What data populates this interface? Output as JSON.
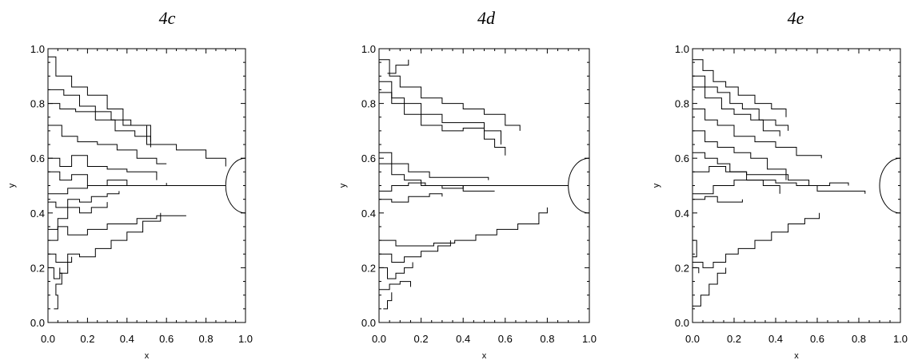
{
  "chart_data": [
    {
      "type": "line",
      "title": "4c",
      "xlabel": "x",
      "ylabel": "y",
      "xlim": [
        0,
        1
      ],
      "ylim": [
        0,
        1
      ],
      "xticks": [
        "0.0",
        "0.2",
        "0.4",
        "0.6",
        "0.8",
        "1.0"
      ],
      "yticks": [
        "0.0",
        "0.2",
        "0.4",
        "0.6",
        "0.8",
        "1.0"
      ],
      "grid": false,
      "target_semicircle": {
        "center": [
          1.0,
          0.5
        ],
        "radius": 0.1
      },
      "series": [
        {
          "x": [
            0.0,
            0.04,
            0.12,
            0.2,
            0.3,
            0.38,
            0.5,
            0.65,
            0.8,
            0.9
          ],
          "y": [
            0.97,
            0.9,
            0.86,
            0.83,
            0.78,
            0.72,
            0.65,
            0.63,
            0.6,
            0.57
          ]
        },
        {
          "x": [
            0.0,
            0.08,
            0.16,
            0.24,
            0.32,
            0.42,
            0.52
          ],
          "y": [
            0.85,
            0.83,
            0.79,
            0.77,
            0.74,
            0.72,
            0.66
          ]
        },
        {
          "x": [
            0.0,
            0.06,
            0.14,
            0.24,
            0.34,
            0.44,
            0.52
          ],
          "y": [
            0.8,
            0.78,
            0.77,
            0.74,
            0.7,
            0.68,
            0.64
          ]
        },
        {
          "x": [
            0.0,
            0.07,
            0.15,
            0.25,
            0.35,
            0.45,
            0.55,
            0.6
          ],
          "y": [
            0.72,
            0.68,
            0.66,
            0.65,
            0.63,
            0.6,
            0.58,
            0.58
          ]
        },
        {
          "x": [
            0.0,
            0.06,
            0.12,
            0.2,
            0.3,
            0.4,
            0.55
          ],
          "y": [
            0.6,
            0.57,
            0.61,
            0.57,
            0.56,
            0.55,
            0.52
          ]
        },
        {
          "x": [
            0.0,
            0.06,
            0.12,
            0.2,
            0.3,
            0.4,
            0.6
          ],
          "y": [
            0.55,
            0.52,
            0.54,
            0.5,
            0.52,
            0.5,
            0.51
          ]
        },
        {
          "x": [
            0.0,
            0.1,
            0.2,
            0.3,
            0.45,
            0.6,
            0.75,
            0.9
          ],
          "y": [
            0.47,
            0.49,
            0.5,
            0.5,
            0.5,
            0.5,
            0.5,
            0.5
          ]
        },
        {
          "x": [
            0.0,
            0.04,
            0.1,
            0.16,
            0.22,
            0.3,
            0.36
          ],
          "y": [
            0.44,
            0.42,
            0.45,
            0.44,
            0.46,
            0.47,
            0.48
          ]
        },
        {
          "x": [
            0.0,
            0.05,
            0.1,
            0.16,
            0.22,
            0.3
          ],
          "y": [
            0.34,
            0.38,
            0.42,
            0.4,
            0.42,
            0.44
          ]
        },
        {
          "x": [
            0.0,
            0.05,
            0.1,
            0.2,
            0.3,
            0.45,
            0.55,
            0.7
          ],
          "y": [
            0.3,
            0.35,
            0.32,
            0.34,
            0.36,
            0.38,
            0.39,
            0.39
          ]
        },
        {
          "x": [
            0.0,
            0.04,
            0.1,
            0.16,
            0.24,
            0.32,
            0.4,
            0.48,
            0.57
          ],
          "y": [
            0.25,
            0.22,
            0.25,
            0.24,
            0.27,
            0.3,
            0.33,
            0.37,
            0.4
          ]
        },
        {
          "x": [
            0.0,
            0.03,
            0.06,
            0.1,
            0.12
          ],
          "y": [
            0.2,
            0.16,
            0.18,
            0.22,
            0.24
          ]
        },
        {
          "x": [
            0.03,
            0.05,
            0.04,
            0.07,
            0.06
          ],
          "y": [
            0.05,
            0.1,
            0.14,
            0.18,
            0.2
          ]
        }
      ]
    },
    {
      "type": "line",
      "title": "4d",
      "xlabel": "x",
      "ylabel": "y",
      "xlim": [
        0,
        1
      ],
      "ylim": [
        0,
        1
      ],
      "xticks": [
        "0.0",
        "0.2",
        "0.4",
        "0.6",
        "0.8",
        "1.0"
      ],
      "yticks": [
        "0.0",
        "0.2",
        "0.4",
        "0.6",
        "0.8",
        "1.0"
      ],
      "grid": false,
      "target_semicircle": {
        "center": [
          1.0,
          0.5
        ],
        "radius": 0.1
      },
      "series": [
        {
          "x": [
            0.0,
            0.05,
            0.1,
            0.2,
            0.3,
            0.4,
            0.5,
            0.6,
            0.67
          ],
          "y": [
            0.96,
            0.9,
            0.86,
            0.82,
            0.8,
            0.78,
            0.76,
            0.72,
            0.7
          ]
        },
        {
          "x": [
            0.04,
            0.08,
            0.14
          ],
          "y": [
            0.91,
            0.94,
            0.96
          ]
        },
        {
          "x": [
            0.0,
            0.06,
            0.12,
            0.2,
            0.3,
            0.4,
            0.5,
            0.58
          ],
          "y": [
            0.88,
            0.82,
            0.8,
            0.76,
            0.73,
            0.73,
            0.7,
            0.65
          ]
        },
        {
          "x": [
            0.0,
            0.06,
            0.12,
            0.2,
            0.3,
            0.4,
            0.5,
            0.55,
            0.6
          ],
          "y": [
            0.84,
            0.8,
            0.76,
            0.72,
            0.7,
            0.71,
            0.67,
            0.64,
            0.61
          ]
        },
        {
          "x": [
            0.0,
            0.06,
            0.14,
            0.24,
            0.34,
            0.44,
            0.52
          ],
          "y": [
            0.62,
            0.58,
            0.55,
            0.53,
            0.53,
            0.53,
            0.52
          ]
        },
        {
          "x": [
            0.0,
            0.06,
            0.12,
            0.2,
            0.3,
            0.4,
            0.5,
            0.55
          ],
          "y": [
            0.58,
            0.54,
            0.52,
            0.5,
            0.5,
            0.48,
            0.48,
            0.48
          ]
        },
        {
          "x": [
            0.0,
            0.06,
            0.14,
            0.22,
            0.3,
            0.4,
            0.5,
            0.6,
            0.7,
            0.8,
            0.9
          ],
          "y": [
            0.48,
            0.5,
            0.51,
            0.5,
            0.49,
            0.5,
            0.5,
            0.5,
            0.5,
            0.5,
            0.5
          ]
        },
        {
          "x": [
            0.0,
            0.06,
            0.14,
            0.24,
            0.3
          ],
          "y": [
            0.45,
            0.44,
            0.46,
            0.47,
            0.46
          ]
        },
        {
          "x": [
            0.0,
            0.08,
            0.16,
            0.26,
            0.36,
            0.46,
            0.56,
            0.66,
            0.76,
            0.8
          ],
          "y": [
            0.3,
            0.28,
            0.28,
            0.29,
            0.3,
            0.32,
            0.34,
            0.36,
            0.4,
            0.42
          ]
        },
        {
          "x": [
            0.0,
            0.06,
            0.12,
            0.2,
            0.28,
            0.34
          ],
          "y": [
            0.25,
            0.22,
            0.24,
            0.26,
            0.28,
            0.3
          ]
        },
        {
          "x": [
            0.0,
            0.04,
            0.08,
            0.12,
            0.16
          ],
          "y": [
            0.2,
            0.16,
            0.18,
            0.2,
            0.22
          ]
        },
        {
          "x": [
            0.0,
            0.05,
            0.1,
            0.15
          ],
          "y": [
            0.12,
            0.14,
            0.15,
            0.13
          ]
        },
        {
          "x": [
            0.02,
            0.04,
            0.06
          ],
          "y": [
            0.05,
            0.08,
            0.11
          ]
        }
      ]
    },
    {
      "type": "line",
      "title": "4e",
      "xlabel": "x",
      "ylabel": "y",
      "xlim": [
        0,
        1
      ],
      "ylim": [
        0,
        1
      ],
      "xticks": [
        "0.0",
        "0.2",
        "0.4",
        "0.6",
        "0.8",
        "1.0"
      ],
      "yticks": [
        "0.0",
        "0.2",
        "0.4",
        "0.6",
        "0.8",
        "1.0"
      ],
      "grid": false,
      "target_semicircle": {
        "center": [
          1.0,
          0.5
        ],
        "radius": 0.1
      },
      "series": [
        {
          "x": [
            0.0,
            0.05,
            0.1,
            0.16,
            0.22,
            0.3,
            0.38,
            0.45
          ],
          "y": [
            0.96,
            0.92,
            0.88,
            0.86,
            0.83,
            0.8,
            0.78,
            0.75
          ]
        },
        {
          "x": [
            0.0,
            0.06,
            0.12,
            0.18,
            0.24,
            0.32,
            0.4,
            0.46
          ],
          "y": [
            0.9,
            0.86,
            0.84,
            0.8,
            0.78,
            0.74,
            0.72,
            0.7
          ]
        },
        {
          "x": [
            0.0,
            0.06,
            0.14,
            0.2,
            0.28,
            0.34,
            0.42
          ],
          "y": [
            0.86,
            0.82,
            0.78,
            0.76,
            0.74,
            0.7,
            0.68
          ]
        },
        {
          "x": [
            0.0,
            0.06,
            0.12,
            0.2,
            0.3,
            0.4,
            0.5,
            0.62
          ],
          "y": [
            0.78,
            0.74,
            0.72,
            0.68,
            0.66,
            0.64,
            0.61,
            0.6
          ]
        },
        {
          "x": [
            0.0,
            0.06,
            0.12,
            0.2,
            0.28,
            0.36,
            0.45
          ],
          "y": [
            0.7,
            0.66,
            0.64,
            0.62,
            0.6,
            0.56,
            0.52
          ]
        },
        {
          "x": [
            0.0,
            0.06,
            0.12,
            0.18,
            0.26,
            0.34,
            0.42
          ],
          "y": [
            0.62,
            0.6,
            0.58,
            0.55,
            0.52,
            0.5,
            0.47
          ]
        },
        {
          "x": [
            0.0,
            0.08,
            0.16,
            0.26,
            0.36,
            0.46,
            0.56,
            0.66,
            0.75
          ],
          "y": [
            0.55,
            0.57,
            0.55,
            0.54,
            0.54,
            0.52,
            0.5,
            0.51,
            0.5
          ]
        },
        {
          "x": [
            0.0,
            0.1,
            0.2,
            0.3,
            0.4,
            0.5,
            0.6,
            0.7,
            0.83
          ],
          "y": [
            0.47,
            0.5,
            0.52,
            0.52,
            0.51,
            0.5,
            0.48,
            0.48,
            0.47
          ]
        },
        {
          "x": [
            0.0,
            0.06,
            0.12,
            0.18,
            0.24
          ],
          "y": [
            0.45,
            0.46,
            0.44,
            0.44,
            0.45
          ]
        },
        {
          "x": [
            0.0,
            0.05,
            0.1,
            0.16,
            0.22,
            0.3,
            0.38,
            0.46,
            0.54,
            0.61
          ],
          "y": [
            0.22,
            0.2,
            0.22,
            0.25,
            0.27,
            0.3,
            0.33,
            0.36,
            0.38,
            0.4
          ]
        },
        {
          "x": [
            0.0,
            0.02,
            0.0,
            0.03
          ],
          "y": [
            0.3,
            0.24,
            0.2,
            0.18
          ]
        },
        {
          "x": [
            0.0,
            0.04,
            0.08,
            0.12,
            0.16
          ],
          "y": [
            0.06,
            0.1,
            0.14,
            0.18,
            0.2
          ]
        }
      ]
    }
  ]
}
